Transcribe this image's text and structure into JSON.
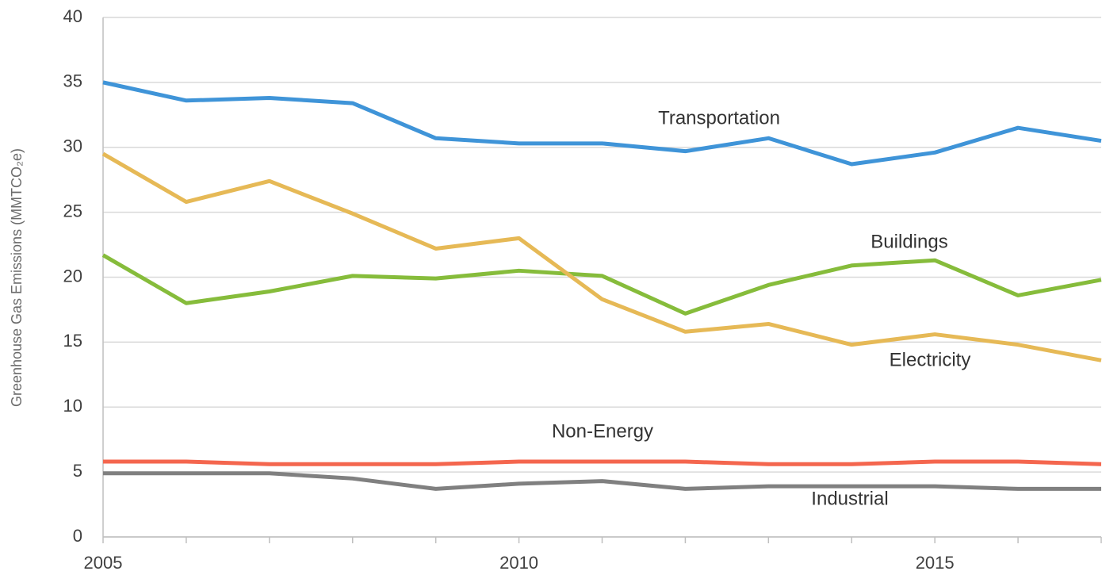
{
  "chart_data": {
    "type": "line",
    "y_label": "Greenhouse Gas Emissions (MMTCO₂e)",
    "x": [
      2005,
      2006,
      2007,
      2008,
      2009,
      2010,
      2011,
      2012,
      2013,
      2014,
      2015,
      2016,
      2017
    ],
    "xlim": [
      2005,
      2017
    ],
    "xticks": [
      2005,
      2010,
      2015
    ],
    "ylim": [
      0,
      40
    ],
    "yticks": [
      0,
      5,
      10,
      15,
      20,
      25,
      30,
      35,
      40
    ],
    "grid": true,
    "series": [
      {
        "name": "Transportation",
        "color": "#3f94d8",
        "values": [
          35.0,
          33.6,
          33.8,
          33.4,
          30.7,
          30.3,
          30.3,
          29.7,
          30.7,
          28.7,
          29.6,
          31.5,
          30.5
        ]
      },
      {
        "name": "Buildings",
        "color": "#86bc3b",
        "values": [
          21.7,
          18.0,
          18.9,
          20.1,
          19.9,
          20.5,
          20.1,
          17.2,
          19.4,
          20.9,
          21.3,
          18.6,
          19.8
        ]
      },
      {
        "name": "Electricity",
        "color": "#e6b956",
        "values": [
          29.5,
          25.8,
          27.4,
          24.9,
          22.2,
          23.0,
          18.3,
          15.8,
          16.4,
          14.8,
          15.6,
          14.8,
          13.6
        ]
      },
      {
        "name": "Non-Energy",
        "color": "#f4664e",
        "values": [
          5.8,
          5.8,
          5.6,
          5.6,
          5.6,
          5.8,
          5.8,
          5.8,
          5.6,
          5.6,
          5.8,
          5.8,
          5.6
        ]
      },
      {
        "name": "Industrial",
        "color": "#808080",
        "values": [
          4.9,
          4.9,
          4.9,
          4.5,
          3.7,
          4.1,
          4.3,
          3.7,
          3.9,
          3.9,
          3.9,
          3.7,
          3.7
        ]
      }
    ]
  }
}
